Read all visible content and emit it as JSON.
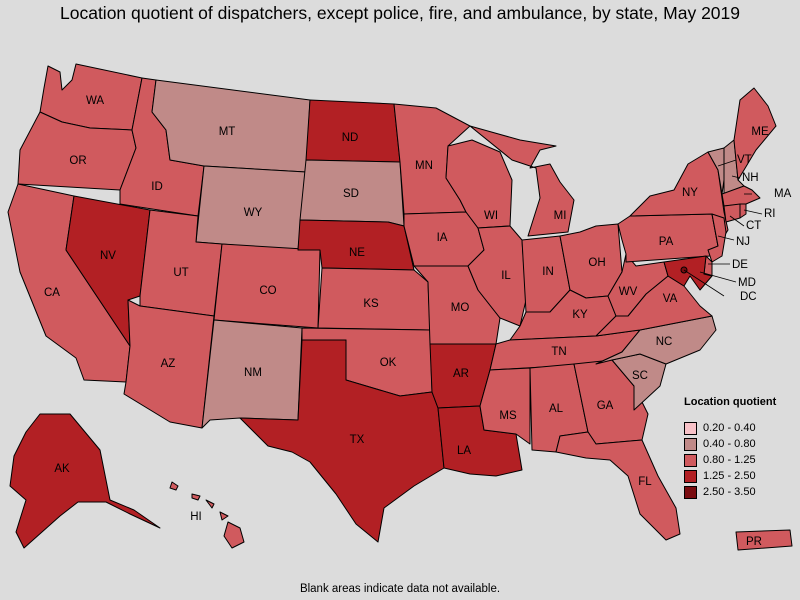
{
  "title": "Location quotient of dispatchers, except police, fire, and ambulance, by state, May 2019",
  "legend": {
    "title": "Location quotient",
    "items": [
      {
        "label": "0.20 - 0.40",
        "color": "#f8c2c8"
      },
      {
        "label": "0.40 - 0.80",
        "color": "#c08a88"
      },
      {
        "label": "0.80 - 1.25",
        "color": "#d05a5e"
      },
      {
        "label": "1.25 - 2.50",
        "color": "#b22024"
      },
      {
        "label": "2.50 - 3.50",
        "color": "#7a0c10"
      }
    ]
  },
  "footnote": "Blank areas indicate data not available.",
  "states": {
    "WA": {
      "label": "WA",
      "class": "0.80 - 1.25"
    },
    "OR": {
      "label": "OR",
      "class": "0.80 - 1.25"
    },
    "CA": {
      "label": "CA",
      "class": "0.80 - 1.25"
    },
    "NV": {
      "label": "NV",
      "class": "1.25 - 2.50"
    },
    "ID": {
      "label": "ID",
      "class": "0.80 - 1.25"
    },
    "MT": {
      "label": "MT",
      "class": "0.40 - 0.80"
    },
    "WY": {
      "label": "WY",
      "class": "0.40 - 0.80"
    },
    "UT": {
      "label": "UT",
      "class": "0.80 - 1.25"
    },
    "AZ": {
      "label": "AZ",
      "class": "0.80 - 1.25"
    },
    "CO": {
      "label": "CO",
      "class": "0.80 - 1.25"
    },
    "NM": {
      "label": "NM",
      "class": "0.40 - 0.80"
    },
    "ND": {
      "label": "ND",
      "class": "1.25 - 2.50"
    },
    "SD": {
      "label": "SD",
      "class": "0.40 - 0.80"
    },
    "NE": {
      "label": "NE",
      "class": "1.25 - 2.50"
    },
    "KS": {
      "label": "KS",
      "class": "0.80 - 1.25"
    },
    "OK": {
      "label": "OK",
      "class": "0.80 - 1.25"
    },
    "TX": {
      "label": "TX",
      "class": "1.25 - 2.50"
    },
    "MN": {
      "label": "MN",
      "class": "0.80 - 1.25"
    },
    "IA": {
      "label": "IA",
      "class": "0.80 - 1.25"
    },
    "MO": {
      "label": "MO",
      "class": "0.80 - 1.25"
    },
    "AR": {
      "label": "AR",
      "class": "1.25 - 2.50"
    },
    "LA": {
      "label": "LA",
      "class": "1.25 - 2.50"
    },
    "WI": {
      "label": "WI",
      "class": "0.80 - 1.25"
    },
    "IL": {
      "label": "IL",
      "class": "0.80 - 1.25"
    },
    "MI": {
      "label": "MI",
      "class": "0.80 - 1.25"
    },
    "IN": {
      "label": "IN",
      "class": "0.80 - 1.25"
    },
    "OH": {
      "label": "OH",
      "class": "0.80 - 1.25"
    },
    "KY": {
      "label": "KY",
      "class": "0.80 - 1.25"
    },
    "TN": {
      "label": "TN",
      "class": "0.80 - 1.25"
    },
    "MS": {
      "label": "MS",
      "class": "0.80 - 1.25"
    },
    "AL": {
      "label": "AL",
      "class": "0.80 - 1.25"
    },
    "GA": {
      "label": "GA",
      "class": "0.80 - 1.25"
    },
    "FL": {
      "label": "FL",
      "class": "0.80 - 1.25"
    },
    "SC": {
      "label": "SC",
      "class": "0.40 - 0.80"
    },
    "NC": {
      "label": "NC",
      "class": "0.40 - 0.80"
    },
    "VA": {
      "label": "VA",
      "class": "0.80 - 1.25"
    },
    "WV": {
      "label": "WV",
      "class": "0.80 - 1.25"
    },
    "PA": {
      "label": "PA",
      "class": "0.80 - 1.25"
    },
    "NY": {
      "label": "NY",
      "class": "0.80 - 1.25"
    },
    "VT": {
      "label": "VT",
      "class": "0.40 - 0.80"
    },
    "NH": {
      "label": "NH",
      "class": "0.40 - 0.80"
    },
    "ME": {
      "label": "ME",
      "class": "0.80 - 1.25"
    },
    "MA": {
      "label": "MA",
      "class": "0.80 - 1.25"
    },
    "RI": {
      "label": "RI",
      "class": "0.80 - 1.25"
    },
    "CT": {
      "label": "CT",
      "class": "0.80 - 1.25"
    },
    "NJ": {
      "label": "NJ",
      "class": "0.80 - 1.25"
    },
    "DE": {
      "label": "DE",
      "class": "0.80 - 1.25"
    },
    "MD": {
      "label": "MD",
      "class": "1.25 - 2.50"
    },
    "DC": {
      "label": "DC",
      "class": "2.50 - 3.50"
    },
    "AK": {
      "label": "AK",
      "class": "1.25 - 2.50"
    },
    "HI": {
      "label": "HI",
      "class": "0.80 - 1.25"
    },
    "PR": {
      "label": "PR",
      "class": "0.80 - 1.25"
    }
  }
}
